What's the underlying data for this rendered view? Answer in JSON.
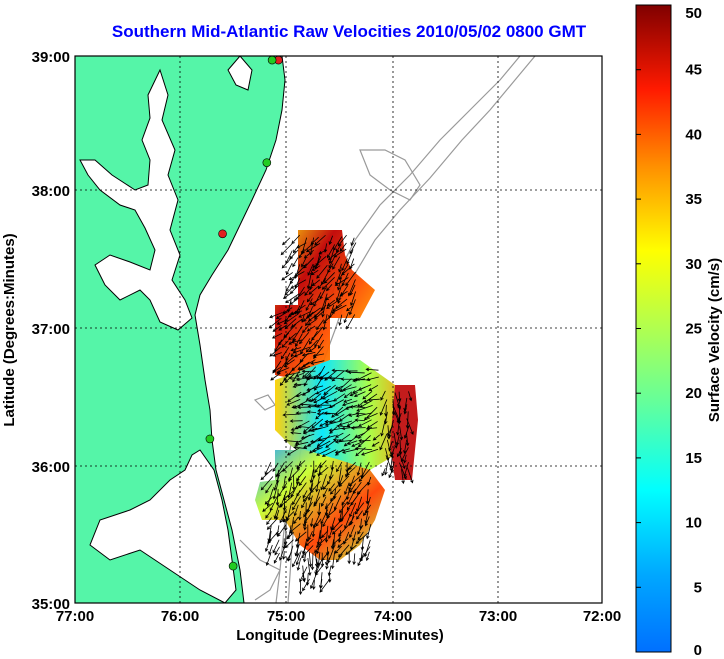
{
  "title": "Southern Mid-Atlantic Raw Velocities 2010/05/02 0800 GMT",
  "x_axis": {
    "label": "Longitude (Degrees:Minutes)",
    "ticks": [
      "77:00",
      "76:00",
      "75:00",
      "74:00",
      "73:00",
      "72:00"
    ]
  },
  "y_axis": {
    "label": "Latitude (Degrees:Minutes)",
    "ticks": [
      "39:00",
      "38:00",
      "37:00",
      "36:00",
      "35:00"
    ]
  },
  "colorbar": {
    "label": "Surface Velocity (cm/s)",
    "ticks": [
      "0",
      "5",
      "10",
      "15",
      "20",
      "25",
      "30",
      "35",
      "40",
      "45",
      "50"
    ],
    "colormap": "jet",
    "range": [
      0,
      50
    ]
  },
  "colors": {
    "land": "#55f5a8",
    "title": "#0000ff",
    "bathymetry": "#9a9a9a",
    "station_green": "#22cc22",
    "station_red": "#e02020"
  },
  "map_extent": {
    "lon": [
      -77,
      -72
    ],
    "lat": [
      35,
      39
    ]
  },
  "stations": [
    {
      "lon": -75.07,
      "lat": 38.97,
      "status": "red"
    },
    {
      "lon": -75.13,
      "lat": 38.97,
      "status": "green"
    },
    {
      "lon": -75.6,
      "lat": 37.7,
      "status": "red"
    },
    {
      "lon": -75.18,
      "lat": 38.22,
      "status": "green"
    },
    {
      "lon": -75.72,
      "lat": 36.2,
      "status": "green"
    },
    {
      "lon": -75.5,
      "lat": 35.27,
      "status": "green"
    }
  ]
}
